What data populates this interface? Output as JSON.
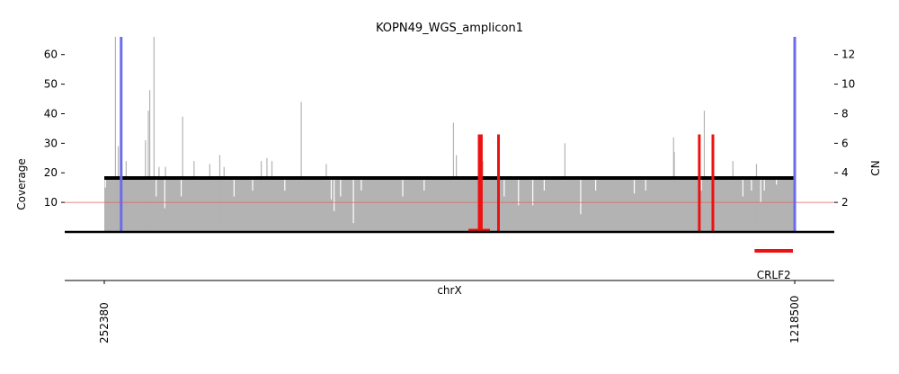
{
  "chart_data": {
    "type": "bar",
    "title": "KOPN49_WGS_amplicon1",
    "xlabel": "chrX",
    "ylabel": "Coverage",
    "ylabel_right": "CN",
    "xlim": [
      252380,
      1218500
    ],
    "ylim": [
      0,
      66
    ],
    "ylim_right": [
      0,
      13.2
    ],
    "xticks": [
      252380,
      1218500
    ],
    "yticks": [
      10,
      20,
      30,
      40,
      50,
      60
    ],
    "yticks_right": [
      2,
      4,
      6,
      8,
      10,
      12
    ],
    "grid": false,
    "coverage_baseline": 18.5,
    "coverage_spikes": [
      {
        "x": 268000,
        "y": 66
      },
      {
        "x": 272000,
        "y": 29
      },
      {
        "x": 277000,
        "y": 22
      },
      {
        "x": 283000,
        "y": 24
      },
      {
        "x": 310000,
        "y": 31
      },
      {
        "x": 314000,
        "y": 41
      },
      {
        "x": 316000,
        "y": 48
      },
      {
        "x": 322000,
        "y": 66
      },
      {
        "x": 329000,
        "y": 22
      },
      {
        "x": 338000,
        "y": 22
      },
      {
        "x": 362000,
        "y": 39
      },
      {
        "x": 378000,
        "y": 24
      },
      {
        "x": 400000,
        "y": 23
      },
      {
        "x": 420000,
        "y": 22
      },
      {
        "x": 414000,
        "y": 26
      },
      {
        "x": 472000,
        "y": 24
      },
      {
        "x": 480000,
        "y": 25
      },
      {
        "x": 487000,
        "y": 24
      },
      {
        "x": 528000,
        "y": 44
      },
      {
        "x": 563000,
        "y": 23
      },
      {
        "x": 741000,
        "y": 37
      },
      {
        "x": 745000,
        "y": 26
      },
      {
        "x": 776000,
        "y": 23
      },
      {
        "x": 782000,
        "y": 24
      },
      {
        "x": 897000,
        "y": 30
      },
      {
        "x": 1049000,
        "y": 32
      },
      {
        "x": 1050000,
        "y": 27
      },
      {
        "x": 1092000,
        "y": 41
      },
      {
        "x": 1132000,
        "y": 24
      },
      {
        "x": 1165000,
        "y": 23
      }
    ],
    "coverage_dips": [
      {
        "x": 254000,
        "y": 15
      },
      {
        "x": 325000,
        "y": 12
      },
      {
        "x": 337000,
        "y": 8
      },
      {
        "x": 360000,
        "y": 12
      },
      {
        "x": 434000,
        "y": 12
      },
      {
        "x": 460000,
        "y": 14
      },
      {
        "x": 505000,
        "y": 14
      },
      {
        "x": 570000,
        "y": 11
      },
      {
        "x": 574000,
        "y": 7
      },
      {
        "x": 583000,
        "y": 12
      },
      {
        "x": 601000,
        "y": 3
      },
      {
        "x": 612000,
        "y": 14
      },
      {
        "x": 670000,
        "y": 12
      },
      {
        "x": 700000,
        "y": 14
      },
      {
        "x": 780000,
        "y": 12
      },
      {
        "x": 812000,
        "y": 12
      },
      {
        "x": 832000,
        "y": 9
      },
      {
        "x": 852000,
        "y": 9
      },
      {
        "x": 868000,
        "y": 14
      },
      {
        "x": 919000,
        "y": 6
      },
      {
        "x": 940000,
        "y": 14
      },
      {
        "x": 994000,
        "y": 13
      },
      {
        "x": 1010000,
        "y": 14
      },
      {
        "x": 1088000,
        "y": 14
      },
      {
        "x": 1146000,
        "y": 12
      },
      {
        "x": 1158000,
        "y": 14
      },
      {
        "x": 1171000,
        "y": 10
      },
      {
        "x": 1176000,
        "y": 14
      },
      {
        "x": 1193000,
        "y": 16
      }
    ],
    "cn_segment": {
      "start": 252380,
      "end": 1218500,
      "cn": 3.65
    },
    "cn_threshold_line": {
      "y": 10,
      "color": "#e06060"
    },
    "breakpoints_blue": [
      276000,
      1218500
    ],
    "breakpoints_red": [
      {
        "x": 777000,
        "y": 33
      },
      {
        "x": 780000,
        "y": 33
      },
      {
        "x": 804000,
        "y": 33
      },
      {
        "x": 1085000,
        "y": 33
      },
      {
        "x": 1104000,
        "y": 33
      }
    ],
    "red_region": {
      "start": 762000,
      "end": 792000
    },
    "genes": [
      {
        "name": "CRLF2",
        "start": 1190000,
        "end": 1216000
      }
    ],
    "colors": {
      "coverage": "#b3b3b3",
      "cn_segment": "#000000",
      "breakpoint_blue": "#6b6bef",
      "breakpoint_red": "#ee1111",
      "gene": "#ee1111"
    }
  }
}
